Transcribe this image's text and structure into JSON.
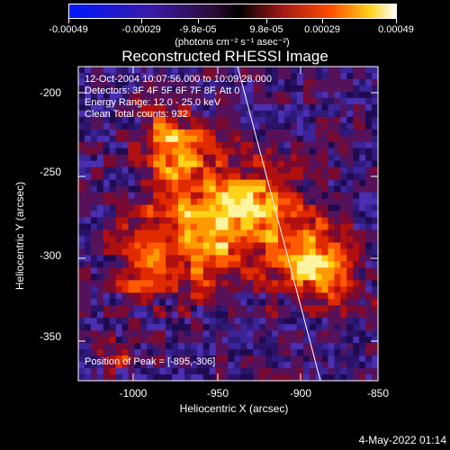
{
  "colorbar": {
    "ticks": [
      "-0.00049",
      "-0.00029",
      "-9.8e-05",
      "9.8e-05",
      "0.00029",
      "0.00049"
    ],
    "unit": "(photons cm⁻² s⁻¹ asec⁻²)"
  },
  "chart_data": {
    "type": "heatmap",
    "title": "Reconstructed RHESSI Image",
    "xlabel": "Heliocentric X (arcsec)",
    "ylabel": "Heliocentric Y (arcsec)",
    "xlim": [
      -1040,
      -843
    ],
    "ylim": [
      -377,
      -187
    ],
    "x_ticks": [
      "-1000",
      "-950",
      "-900",
      "-850"
    ],
    "y_ticks": [
      "-200",
      "-250",
      "-300",
      "-350"
    ],
    "peak": [
      -895,
      -306
    ],
    "colorbar_range": [
      -0.00049,
      0.00049
    ]
  },
  "annotations": {
    "time": "12-Oct-2004 10:07:56.000 to 10:09:28.000",
    "detectors": "Detectors: 3F 4F 5F 6F 7F 8F, Att 0",
    "energy": "Energy Range: 12.0 - 25.0 keV",
    "clean": "Clean     Total counts: 932",
    "peak": "Position of Peak = [-895,-306]"
  },
  "date": "4-May-2022 01:14"
}
